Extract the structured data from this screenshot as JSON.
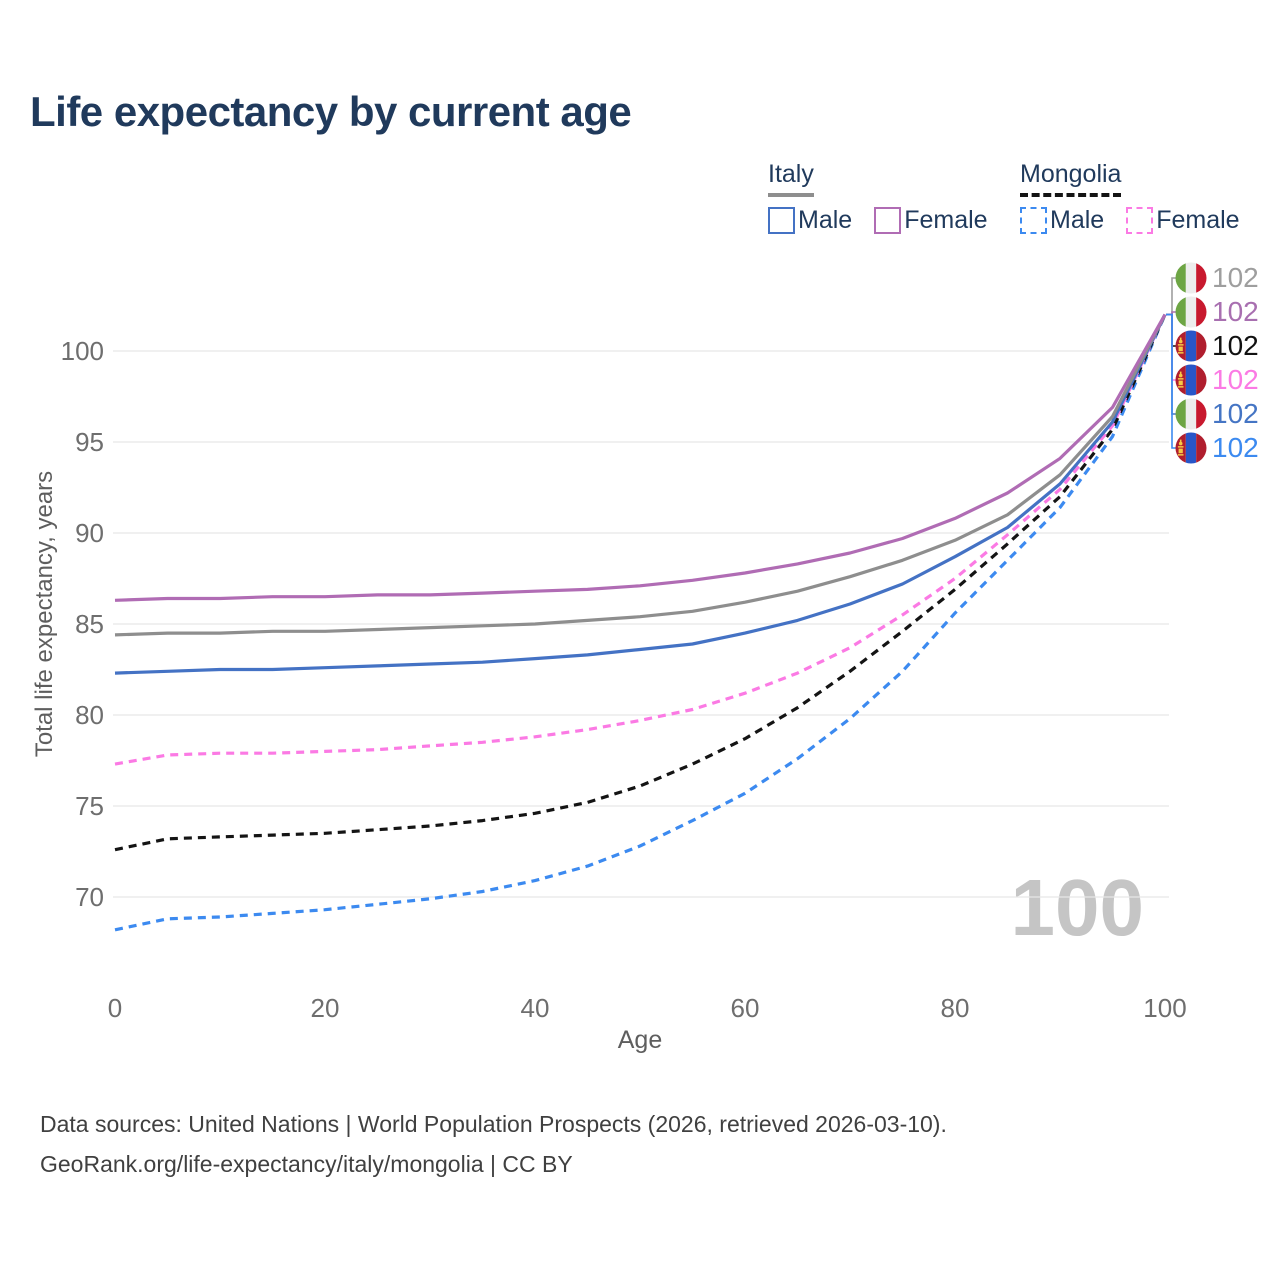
{
  "title": "Life expectancy by current age",
  "watermark": "100",
  "legend": {
    "groups": [
      {
        "label": "Italy",
        "underline_color": "#8e8e8e",
        "underline_style": "solid",
        "items": [
          {
            "label": "Male",
            "color": "#4472c4",
            "line_style": "solid"
          },
          {
            "label": "Female",
            "color": "#b06cb4",
            "line_style": "solid"
          }
        ]
      },
      {
        "label": "Mongolia",
        "underline_color": "#141414",
        "underline_style": "dashed",
        "items": [
          {
            "label": "Male",
            "color": "#3c8af0",
            "line_style": "dashed"
          },
          {
            "label": "Female",
            "color": "#fb7ae4",
            "line_style": "dashed"
          }
        ]
      }
    ]
  },
  "footer": {
    "line1": "Data sources: United Nations | World Population Prospects (2026, retrieved 2026-03-10).",
    "line2": "GeoRank.org/life-expectancy/italy/mongolia | CC BY"
  },
  "chart_data": {
    "type": "line",
    "title": "Life expectancy by current age",
    "xlabel": "Age",
    "ylabel": "Total life expectancy, years",
    "xlim": [
      0,
      100
    ],
    "ylim": [
      67,
      103
    ],
    "xticks": [
      0,
      20,
      40,
      60,
      80,
      100
    ],
    "yticks": [
      70,
      75,
      80,
      85,
      90,
      95,
      100
    ],
    "grid": "horizontal",
    "legend_position": "top-right",
    "x": [
      0,
      5,
      10,
      15,
      20,
      25,
      30,
      35,
      40,
      45,
      50,
      55,
      60,
      65,
      70,
      75,
      80,
      85,
      90,
      95,
      100
    ],
    "series": [
      {
        "id": "mongolia-male",
        "name": "Mongolia Male",
        "country": "Mongolia",
        "sex": "male",
        "color": "#3c8af0",
        "dash": "dashed",
        "values": [
          68.2,
          68.8,
          68.9,
          69.1,
          69.3,
          69.6,
          69.9,
          70.3,
          70.9,
          71.7,
          72.8,
          74.2,
          75.7,
          77.6,
          79.8,
          82.4,
          85.6,
          88.5,
          91.4,
          95.3,
          102
        ]
      },
      {
        "id": "mongolia-both",
        "name": "Mongolia",
        "country": "Mongolia",
        "sex": "all",
        "color": "#141414",
        "dash": "dashed",
        "values": [
          72.6,
          73.2,
          73.3,
          73.4,
          73.5,
          73.7,
          73.9,
          74.2,
          74.6,
          75.2,
          76.1,
          77.3,
          78.7,
          80.4,
          82.4,
          84.6,
          86.9,
          89.4,
          92.0,
          95.7,
          102
        ]
      },
      {
        "id": "mongolia-female",
        "name": "Mongolia Female",
        "country": "Mongolia",
        "sex": "female",
        "color": "#fb7ae4",
        "dash": "dashed",
        "values": [
          77.3,
          77.8,
          77.9,
          77.9,
          78.0,
          78.1,
          78.3,
          78.5,
          78.8,
          79.2,
          79.7,
          80.3,
          81.2,
          82.3,
          83.7,
          85.5,
          87.5,
          89.9,
          92.4,
          95.9,
          102
        ]
      },
      {
        "id": "italy-male",
        "name": "Italy Male",
        "country": "Italy",
        "sex": "male",
        "color": "#4472c4",
        "dash": "solid",
        "values": [
          82.3,
          82.4,
          82.5,
          82.5,
          82.6,
          82.7,
          82.8,
          82.9,
          83.1,
          83.3,
          83.6,
          83.9,
          84.5,
          85.2,
          86.1,
          87.2,
          88.7,
          90.3,
          92.7,
          96.1,
          102
        ]
      },
      {
        "id": "italy-both",
        "name": "Italy",
        "country": "Italy",
        "sex": "all",
        "color": "#8e8e8e",
        "dash": "solid",
        "values": [
          84.4,
          84.5,
          84.5,
          84.6,
          84.6,
          84.7,
          84.8,
          84.9,
          85.0,
          85.2,
          85.4,
          85.7,
          86.2,
          86.8,
          87.6,
          88.5,
          89.6,
          91.0,
          93.2,
          96.4,
          102
        ]
      },
      {
        "id": "italy-female",
        "name": "Italy Female",
        "country": "Italy",
        "sex": "female",
        "color": "#b06cb4",
        "dash": "solid",
        "values": [
          86.3,
          86.4,
          86.4,
          86.5,
          86.5,
          86.6,
          86.6,
          86.7,
          86.8,
          86.9,
          87.1,
          87.4,
          87.8,
          88.3,
          88.9,
          89.7,
          90.8,
          92.2,
          94.1,
          96.9,
          102
        ]
      }
    ],
    "end_labels": [
      {
        "series": "italy-both",
        "value": "102",
        "flag": "italy",
        "color": "#9e9e9e"
      },
      {
        "series": "italy-female",
        "value": "102",
        "flag": "italy",
        "color": "#a86fb0"
      },
      {
        "series": "mongolia-both",
        "value": "102",
        "flag": "mongolia",
        "color": "#111111"
      },
      {
        "series": "mongolia-female",
        "value": "102",
        "flag": "mongolia",
        "color": "#fb7ae4"
      },
      {
        "series": "italy-male",
        "value": "102",
        "flag": "italy",
        "color": "#4575c4"
      },
      {
        "series": "mongolia-male",
        "value": "102",
        "flag": "mongolia",
        "color": "#3c8af0"
      }
    ]
  }
}
